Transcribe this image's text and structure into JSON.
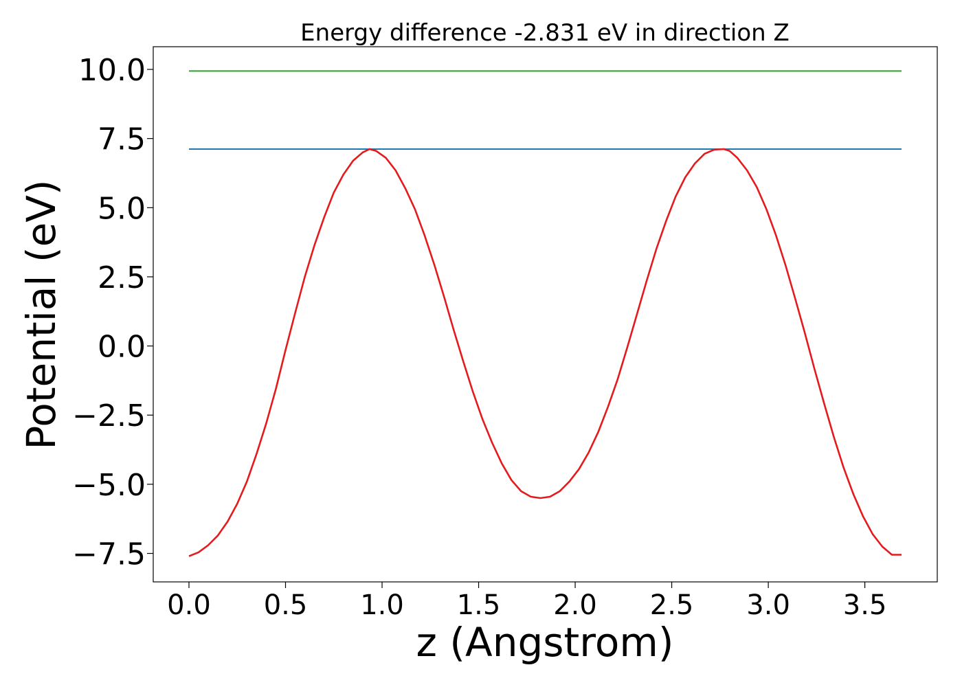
{
  "chart_data": {
    "type": "line",
    "title": "Energy difference -2.831 eV in direction Z",
    "xlabel": "z (Angstrom)",
    "ylabel": "Potential (eV)",
    "xlim": [
      -0.185,
      3.875
    ],
    "ylim": [
      -8.53,
      10.82
    ],
    "grid": false,
    "xticks": [
      0.0,
      0.5,
      1.0,
      1.5,
      2.0,
      2.5,
      3.0,
      3.5
    ],
    "xtick_labels": [
      "0.0",
      "0.5",
      "1.0",
      "1.5",
      "2.0",
      "2.5",
      "3.0",
      "3.5"
    ],
    "yticks": [
      10.0,
      7.5,
      5.0,
      2.5,
      0.0,
      -2.5,
      -5.0,
      -7.5
    ],
    "ytick_labels": [
      "10.0",
      "7.5",
      "5.0",
      "2.5",
      "0.0",
      "−2.5",
      "−5.0",
      "−7.5"
    ],
    "series": [
      {
        "color": "#2ca02c",
        "x": [
          0.0,
          3.69
        ],
        "y": [
          9.94,
          9.94
        ]
      },
      {
        "color": "#1f77b4",
        "x": [
          0.0,
          3.69
        ],
        "y": [
          7.12,
          7.12
        ]
      },
      {
        "color": "#e41a1c",
        "x": [
          0.0,
          0.05,
          0.1,
          0.15,
          0.2,
          0.25,
          0.3,
          0.35,
          0.4,
          0.45,
          0.5,
          0.55,
          0.6,
          0.65,
          0.7,
          0.75,
          0.8,
          0.85,
          0.9,
          0.935,
          0.97,
          1.02,
          1.07,
          1.12,
          1.17,
          1.22,
          1.27,
          1.32,
          1.37,
          1.42,
          1.47,
          1.52,
          1.57,
          1.62,
          1.67,
          1.72,
          1.77,
          1.82,
          1.87,
          1.92,
          1.97,
          2.02,
          2.07,
          2.12,
          2.17,
          2.22,
          2.27,
          2.32,
          2.37,
          2.42,
          2.47,
          2.52,
          2.57,
          2.62,
          2.67,
          2.72,
          2.77,
          2.8,
          2.84,
          2.89,
          2.94,
          2.99,
          3.04,
          3.09,
          3.14,
          3.19,
          3.24,
          3.29,
          3.34,
          3.39,
          3.44,
          3.49,
          3.54,
          3.59,
          3.64,
          3.69
        ],
        "y": [
          -7.6,
          -7.46,
          -7.2,
          -6.85,
          -6.35,
          -5.7,
          -4.9,
          -3.9,
          -2.8,
          -1.55,
          -0.15,
          1.2,
          2.5,
          3.65,
          4.65,
          5.55,
          6.2,
          6.7,
          7.0,
          7.12,
          7.05,
          6.8,
          6.35,
          5.7,
          4.95,
          4.0,
          2.95,
          1.8,
          0.6,
          -0.55,
          -1.65,
          -2.65,
          -3.5,
          -4.25,
          -4.85,
          -5.25,
          -5.45,
          -5.5,
          -5.45,
          -5.25,
          -4.9,
          -4.45,
          -3.85,
          -3.1,
          -2.2,
          -1.2,
          -0.05,
          1.15,
          2.35,
          3.5,
          4.5,
          5.4,
          6.1,
          6.6,
          6.95,
          7.1,
          7.12,
          7.05,
          6.8,
          6.35,
          5.75,
          4.95,
          4.0,
          2.9,
          1.7,
          0.45,
          -0.85,
          -2.1,
          -3.3,
          -4.4,
          -5.35,
          -6.15,
          -6.8,
          -7.25,
          -7.55,
          -7.55
        ]
      }
    ]
  }
}
